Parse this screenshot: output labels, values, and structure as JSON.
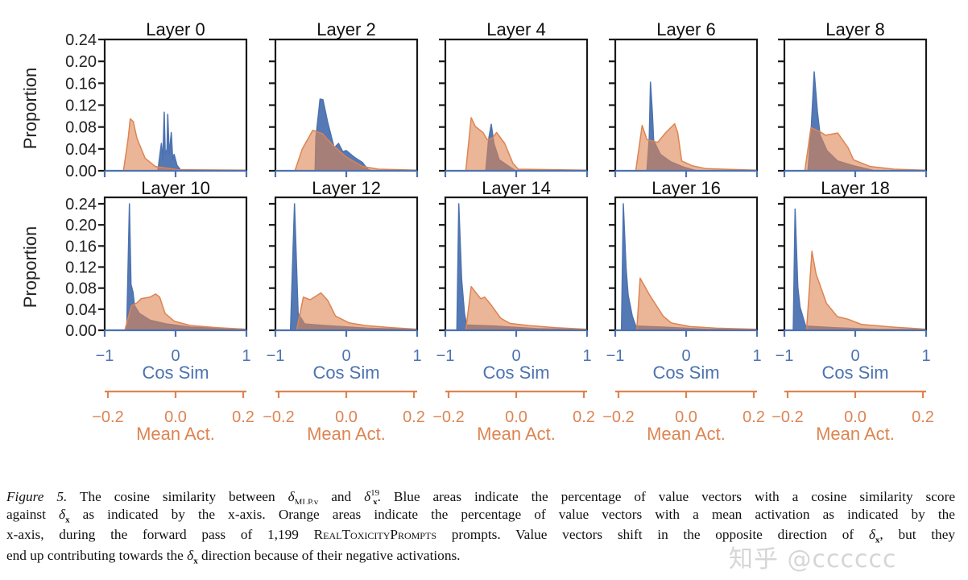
{
  "colors": {
    "cos_sim": "#4c72b0",
    "mean_act": "#dd8452",
    "frame": "#1a1a1a"
  },
  "y_axis": {
    "label": "Proportion",
    "ticks": [
      "0.00",
      "0.04",
      "0.08",
      "0.12",
      "0.16",
      "0.20",
      "0.24"
    ]
  },
  "x_axis_cos": {
    "label": "Cos Sim",
    "ticks": [
      "−1",
      "0",
      "1"
    ],
    "values": [
      -1,
      0,
      1
    ],
    "xlim": [
      -1,
      1
    ]
  },
  "x_axis_mean": {
    "label": "Mean Act.",
    "ticks": [
      "−0.2",
      "0.0",
      "0.2"
    ],
    "values": [
      -0.2,
      0,
      0.2
    ],
    "xlim": [
      -0.21,
      0.21
    ]
  },
  "chart_data": [
    {
      "type": "area",
      "title": "Layer 0",
      "ylim": [
        0,
        0.24
      ],
      "cos_sim": [
        [
          -0.25,
          0
        ],
        [
          -0.22,
          0.03
        ],
        [
          -0.2,
          0.05
        ],
        [
          -0.18,
          0.02
        ],
        [
          -0.16,
          0.107
        ],
        [
          -0.145,
          0.03
        ],
        [
          -0.12,
          0.04
        ],
        [
          -0.11,
          0.103
        ],
        [
          -0.09,
          0.03
        ],
        [
          -0.06,
          0.07
        ],
        [
          -0.04,
          0.02
        ],
        [
          -0.02,
          0.03
        ],
        [
          0.02,
          0.01
        ],
        [
          0.08,
          0
        ]
      ],
      "mean_act": [
        [
          -0.154,
          0
        ],
        [
          -0.14,
          0.06
        ],
        [
          -0.134,
          0.095
        ],
        [
          -0.125,
          0.09
        ],
        [
          -0.114,
          0.059
        ],
        [
          -0.09,
          0.023
        ],
        [
          -0.06,
          0.008
        ],
        [
          0.005,
          0.002
        ],
        [
          0.21,
          0.001
        ]
      ]
    },
    {
      "type": "area",
      "title": "Layer 2",
      "ylim": [
        0,
        0.24
      ],
      "cos_sim": [
        [
          -0.44,
          0
        ],
        [
          -0.43,
          0.06
        ],
        [
          -0.37,
          0.131
        ],
        [
          -0.33,
          0.13
        ],
        [
          -0.265,
          0.09
        ],
        [
          -0.17,
          0.042
        ],
        [
          -0.11,
          0.05
        ],
        [
          -0.05,
          0.035
        ],
        [
          0.0,
          0.037
        ],
        [
          0.11,
          0.025
        ],
        [
          0.23,
          0.015
        ],
        [
          0.3,
          0.003
        ],
        [
          0.35,
          0
        ]
      ],
      "mean_act": [
        [
          -0.152,
          0
        ],
        [
          -0.13,
          0.04
        ],
        [
          -0.099,
          0.074
        ],
        [
          -0.071,
          0.068
        ],
        [
          -0.04,
          0.047
        ],
        [
          0.0,
          0.025
        ],
        [
          0.048,
          0.008
        ],
        [
          0.095,
          0.003
        ],
        [
          0.21,
          0.001
        ]
      ]
    },
    {
      "type": "area",
      "title": "Layer 4",
      "ylim": [
        0,
        0.24
      ],
      "cos_sim": [
        [
          -0.43,
          0
        ],
        [
          -0.39,
          0.057
        ],
        [
          -0.352,
          0.085
        ],
        [
          -0.315,
          0.05
        ],
        [
          -0.24,
          0.02
        ],
        [
          -0.125,
          0.01
        ],
        [
          -0.01,
          0
        ]
      ],
      "mean_act": [
        [
          -0.149,
          0
        ],
        [
          -0.133,
          0.097
        ],
        [
          -0.121,
          0.081
        ],
        [
          -0.098,
          0.07
        ],
        [
          -0.086,
          0.057
        ],
        [
          -0.07,
          0.06
        ],
        [
          -0.058,
          0.07
        ],
        [
          -0.034,
          0.05
        ],
        [
          -0.01,
          0.014
        ],
        [
          0.006,
          0.003
        ],
        [
          0.21,
          0.001
        ]
      ]
    },
    {
      "type": "area",
      "title": "Layer 6",
      "ylim": [
        0,
        0.24
      ],
      "cos_sim": [
        [
          -0.553,
          0
        ],
        [
          -0.52,
          0.06
        ],
        [
          -0.503,
          0.162
        ],
        [
          -0.477,
          0.108
        ],
        [
          -0.458,
          0.055
        ],
        [
          -0.364,
          0.03
        ],
        [
          -0.212,
          0.016
        ],
        [
          -0.02,
          0.006
        ],
        [
          0.15,
          0
        ]
      ],
      "mean_act": [
        [
          -0.149,
          0
        ],
        [
          -0.13,
          0.083
        ],
        [
          -0.116,
          0.057
        ],
        [
          -0.084,
          0.052
        ],
        [
          -0.06,
          0.07
        ],
        [
          -0.034,
          0.086
        ],
        [
          -0.025,
          0.07
        ],
        [
          -0.013,
          0.018
        ],
        [
          0.019,
          0.009
        ],
        [
          0.058,
          0.004
        ],
        [
          0.21,
          0.001
        ]
      ]
    },
    {
      "type": "area",
      "title": "Layer 8",
      "ylim": [
        0,
        0.24
      ],
      "cos_sim": [
        [
          -0.667,
          0
        ],
        [
          -0.62,
          0.08
        ],
        [
          -0.58,
          0.181
        ],
        [
          -0.534,
          0.108
        ],
        [
          -0.496,
          0.065
        ],
        [
          -0.4,
          0.037
        ],
        [
          -0.25,
          0.018
        ],
        [
          -0.02,
          0.009
        ],
        [
          0.28,
          0
        ]
      ],
      "mean_act": [
        [
          -0.149,
          0
        ],
        [
          -0.131,
          0.079
        ],
        [
          -0.1,
          0.07
        ],
        [
          -0.088,
          0.065
        ],
        [
          -0.052,
          0.069
        ],
        [
          -0.021,
          0.042
        ],
        [
          -0.005,
          0.02
        ],
        [
          0.043,
          0.008
        ],
        [
          0.114,
          0.003
        ],
        [
          0.21,
          0.001
        ]
      ]
    },
    {
      "type": "area",
      "title": "Layer 10",
      "ylim": [
        0,
        0.25
      ],
      "cos_sim": [
        [
          -0.69,
          0
        ],
        [
          -0.651,
          0.24
        ],
        [
          -0.628,
          0.087
        ],
        [
          -0.6,
          0.072
        ],
        [
          -0.58,
          0.047
        ],
        [
          -0.51,
          0.032
        ],
        [
          -0.356,
          0.019
        ],
        [
          -0.13,
          0.012
        ],
        [
          0.21,
          0.006
        ],
        [
          0.97,
          0.002
        ],
        [
          1,
          0
        ]
      ],
      "mean_act": [
        [
          -0.15,
          0
        ],
        [
          -0.13,
          0.047
        ],
        [
          -0.114,
          0.052
        ],
        [
          -0.102,
          0.06
        ],
        [
          -0.075,
          0.063
        ],
        [
          -0.059,
          0.069
        ],
        [
          -0.047,
          0.063
        ],
        [
          -0.031,
          0.032
        ],
        [
          -0.003,
          0.017
        ],
        [
          0.044,
          0.009
        ],
        [
          0.124,
          0.005
        ],
        [
          0.21,
          0.002
        ]
      ]
    },
    {
      "type": "area",
      "title": "Layer 12",
      "ylim": [
        0,
        0.25
      ],
      "cos_sim": [
        [
          -0.788,
          0
        ],
        [
          -0.731,
          0.24
        ],
        [
          -0.68,
          0.032
        ],
        [
          -0.587,
          0.012
        ],
        [
          -0.303,
          0.009
        ],
        [
          0.3,
          0.004
        ],
        [
          1,
          0.001
        ]
      ],
      "mean_act": [
        [
          -0.147,
          0
        ],
        [
          -0.127,
          0.063
        ],
        [
          -0.107,
          0.058
        ],
        [
          -0.075,
          0.071
        ],
        [
          -0.055,
          0.057
        ],
        [
          -0.032,
          0.027
        ],
        [
          0.008,
          0.014
        ],
        [
          0.056,
          0.009
        ],
        [
          0.135,
          0.005
        ],
        [
          0.21,
          0.002
        ]
      ]
    },
    {
      "type": "area",
      "title": "Layer 14",
      "ylim": [
        0,
        0.25
      ],
      "cos_sim": [
        [
          -0.837,
          0
        ],
        [
          -0.81,
          0.24
        ],
        [
          -0.77,
          0.097
        ],
        [
          -0.73,
          0.032
        ],
        [
          -0.7,
          0.01
        ],
        [
          -0.3,
          0.008
        ],
        [
          0.3,
          0.003
        ],
        [
          1,
          0.001
        ]
      ],
      "mean_act": [
        [
          -0.149,
          0
        ],
        [
          -0.133,
          0.083
        ],
        [
          -0.105,
          0.06
        ],
        [
          -0.093,
          0.063
        ],
        [
          -0.074,
          0.048
        ],
        [
          -0.046,
          0.023
        ],
        [
          -0.018,
          0.013
        ],
        [
          0.037,
          0.009
        ],
        [
          0.117,
          0.005
        ],
        [
          0.21,
          0.002
        ]
      ]
    },
    {
      "type": "area",
      "title": "Layer 16",
      "ylim": [
        0,
        0.25
      ],
      "cos_sim": [
        [
          -0.913,
          0
        ],
        [
          -0.886,
          0.24
        ],
        [
          -0.848,
          0.118
        ],
        [
          -0.818,
          0.067
        ],
        [
          -0.76,
          0.027
        ],
        [
          -0.71,
          0.008
        ],
        [
          -0.3,
          0.006
        ],
        [
          0.3,
          0.002
        ],
        [
          1,
          0.001
        ]
      ],
      "mean_act": [
        [
          -0.146,
          0
        ],
        [
          -0.136,
          0.099
        ],
        [
          -0.108,
          0.067
        ],
        [
          -0.068,
          0.027
        ],
        [
          -0.044,
          0.014
        ],
        [
          0.011,
          0.007
        ],
        [
          0.09,
          0.004
        ],
        [
          0.21,
          0.002
        ]
      ]
    },
    {
      "type": "area",
      "title": "Layer 18",
      "ylim": [
        0,
        0.25
      ],
      "cos_sim": [
        [
          -0.875,
          0
        ],
        [
          -0.849,
          0.23
        ],
        [
          -0.81,
          0.082
        ],
        [
          -0.78,
          0.044
        ],
        [
          -0.742,
          0.027
        ],
        [
          -0.7,
          0.008
        ],
        [
          -0.3,
          0.005
        ],
        [
          0.3,
          0.002
        ],
        [
          1,
          0.001
        ]
      ],
      "mean_act": [
        [
          -0.144,
          0
        ],
        [
          -0.128,
          0.15
        ],
        [
          -0.116,
          0.107
        ],
        [
          -0.085,
          0.051
        ],
        [
          -0.053,
          0.026
        ],
        [
          -0.021,
          0.021
        ],
        [
          0.019,
          0.011
        ],
        [
          0.114,
          0.006
        ],
        [
          0.21,
          0.002
        ]
      ]
    }
  ],
  "caption": {
    "lines": [
      [
        {
          "k": "it",
          "t": "Figure 5."
        },
        {
          "t": " The cosine similarity between "
        },
        {
          "k": "math",
          "t": "δ",
          "sub": "MLP.v"
        },
        {
          "t": " and "
        },
        {
          "k": "math",
          "t": "δ",
          "sub": "x",
          "sup": "19"
        },
        {
          "t": ". Blue areas indicate the percentage of value vectors with a cosine similarity score"
        }
      ],
      [
        {
          "t": "against "
        },
        {
          "k": "math",
          "t": "δ",
          "sub": "x"
        },
        {
          "t": " as indicated by the x-axis. Orange areas indicate the percentage of value vectors with a mean activation as indicated by the"
        }
      ],
      [
        {
          "t": "x-axis, during the forward pass of 1,199 "
        },
        {
          "k": "sc",
          "t": "RealToxicityPrompts"
        },
        {
          "t": " prompts. Value vectors shift in the opposite direction of "
        },
        {
          "k": "math",
          "t": "δ",
          "sub": "x"
        },
        {
          "t": ", but they"
        }
      ],
      [
        {
          "t": "end up contributing towards the "
        },
        {
          "k": "math",
          "t": "δ",
          "sub": "x"
        },
        {
          "t": " direction because of their negative activations."
        }
      ]
    ]
  },
  "watermark": "知乎 @cccccc"
}
